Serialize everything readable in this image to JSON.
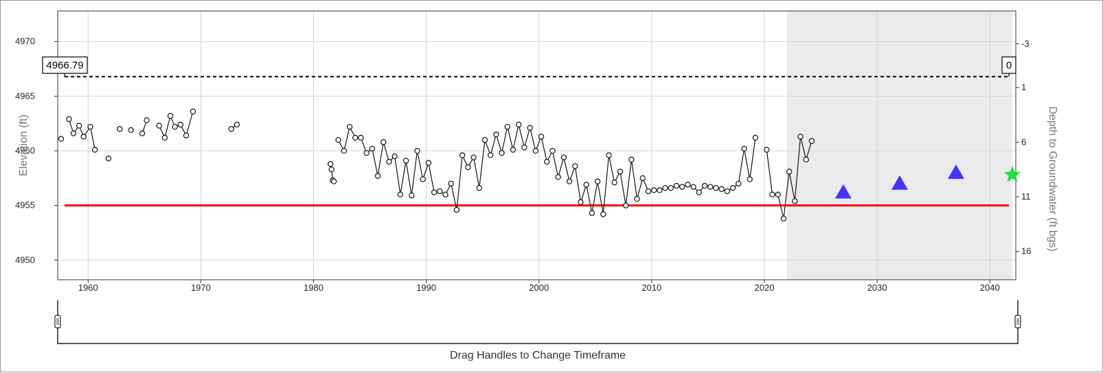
{
  "chart_data": {
    "type": "line",
    "xlim": [
      1957.3,
      2042.3
    ],
    "x_ticks": [
      "1960",
      "1970",
      "1980",
      "1990",
      "2000",
      "2010",
      "2020",
      "2030",
      "2040"
    ],
    "ylabel": "Elevation (ft)",
    "ylim": [
      4948.2,
      4972.8
    ],
    "y_ticks": [
      "4950",
      "4955",
      "4960",
      "4965",
      "4970"
    ],
    "y2label": "Depth to Groundwater (ft bgs)",
    "y2_ticks": [
      {
        "label": "-3",
        "elev": 4969.79
      },
      {
        "label": "1",
        "elev": 4965.79
      },
      {
        "label": "6",
        "elev": 4960.79
      },
      {
        "label": "11",
        "elev": 4955.79
      },
      {
        "label": "16",
        "elev": 4950.79
      }
    ],
    "grid": true,
    "forecast_region": [
      2022.0,
      2042.0
    ],
    "forecast_color": "#ebebed",
    "ground_surface": {
      "value": 4966.79,
      "left_label": "4966.79",
      "right_label": "0",
      "color": "#000000"
    },
    "threshold": {
      "value": 4955.0,
      "color": "#ff0000"
    },
    "series": [
      {
        "points": [
          [
            1957.6,
            4961.1
          ]
        ]
      },
      {
        "points": [
          [
            1958.3,
            4962.9
          ],
          [
            1958.7,
            4961.6
          ],
          [
            1959.2,
            4962.3
          ],
          [
            1959.6,
            4961.3
          ],
          [
            1960.2,
            4962.2
          ],
          [
            1960.6,
            4960.1
          ]
        ]
      },
      {
        "points": [
          [
            1961.8,
            4959.3
          ]
        ]
      },
      {
        "points": [
          [
            1962.8,
            4962.0
          ]
        ]
      },
      {
        "points": [
          [
            1963.8,
            4961.9
          ]
        ]
      },
      {
        "points": [
          [
            1964.8,
            4961.6
          ],
          [
            1965.2,
            4962.8
          ]
        ]
      },
      {
        "points": [
          [
            1966.3,
            4962.3
          ],
          [
            1966.8,
            4961.2
          ],
          [
            1967.3,
            4963.2
          ],
          [
            1967.7,
            4962.2
          ],
          [
            1968.2,
            4962.4
          ],
          [
            1968.7,
            4961.4
          ],
          [
            1969.3,
            4963.6
          ]
        ]
      },
      {
        "points": [
          [
            1972.7,
            4962.0
          ],
          [
            1973.2,
            4962.4
          ]
        ]
      },
      {
        "points": [
          [
            1981.5,
            4958.8
          ],
          [
            1981.6,
            4958.3
          ],
          [
            1981.7,
            4957.3
          ],
          [
            1981.8,
            4957.2
          ]
        ]
      },
      {
        "points": [
          [
            1982.2,
            4961.0
          ],
          [
            1982.7,
            4960.0
          ],
          [
            1983.2,
            4962.2
          ],
          [
            1983.7,
            4961.2
          ],
          [
            1984.2,
            4961.2
          ],
          [
            1984.7,
            4959.8
          ],
          [
            1985.2,
            4960.2
          ],
          [
            1985.7,
            4957.7
          ],
          [
            1986.2,
            4960.8
          ],
          [
            1986.7,
            4959.0
          ],
          [
            1987.2,
            4959.5
          ],
          [
            1987.7,
            4956.0
          ],
          [
            1988.2,
            4959.1
          ],
          [
            1988.7,
            4955.9
          ],
          [
            1989.2,
            4960.0
          ],
          [
            1989.7,
            4957.4
          ],
          [
            1990.2,
            4958.9
          ],
          [
            1990.7,
            4956.2
          ],
          [
            1991.2,
            4956.3
          ],
          [
            1991.7,
            4956.0
          ],
          [
            1992.2,
            4957.0
          ],
          [
            1992.7,
            4954.6
          ],
          [
            1993.2,
            4959.6
          ],
          [
            1993.7,
            4958.5
          ],
          [
            1994.2,
            4959.4
          ],
          [
            1994.7,
            4956.6
          ],
          [
            1995.2,
            4961.0
          ],
          [
            1995.7,
            4959.6
          ],
          [
            1996.2,
            4961.5
          ],
          [
            1996.7,
            4959.8
          ],
          [
            1997.2,
            4962.2
          ],
          [
            1997.7,
            4960.1
          ],
          [
            1998.2,
            4962.4
          ],
          [
            1998.7,
            4960.3
          ],
          [
            1999.2,
            4962.1
          ],
          [
            1999.7,
            4960.0
          ],
          [
            2000.2,
            4961.3
          ],
          [
            2000.7,
            4959.0
          ],
          [
            2001.2,
            4960.0
          ],
          [
            2001.7,
            4957.6
          ],
          [
            2002.2,
            4959.4
          ],
          [
            2002.7,
            4957.2
          ],
          [
            2003.2,
            4958.6
          ],
          [
            2003.7,
            4955.3
          ],
          [
            2004.2,
            4956.9
          ],
          [
            2004.7,
            4954.3
          ],
          [
            2005.2,
            4957.2
          ],
          [
            2005.7,
            4954.2
          ],
          [
            2006.2,
            4959.6
          ],
          [
            2006.7,
            4957.1
          ],
          [
            2007.2,
            4958.1
          ],
          [
            2007.7,
            4955.0
          ],
          [
            2008.2,
            4959.2
          ],
          [
            2008.7,
            4955.6
          ],
          [
            2009.2,
            4957.5
          ],
          [
            2009.7,
            4956.3
          ],
          [
            2010.2,
            4956.4
          ],
          [
            2010.7,
            4956.4
          ],
          [
            2011.2,
            4956.6
          ],
          [
            2011.7,
            4956.6
          ],
          [
            2012.2,
            4956.8
          ],
          [
            2012.7,
            4956.7
          ],
          [
            2013.2,
            4956.9
          ],
          [
            2013.7,
            4956.7
          ],
          [
            2014.2,
            4956.2
          ],
          [
            2014.7,
            4956.8
          ],
          [
            2015.2,
            4956.7
          ],
          [
            2015.7,
            4956.6
          ],
          [
            2016.2,
            4956.5
          ],
          [
            2016.7,
            4956.3
          ],
          [
            2017.2,
            4956.6
          ],
          [
            2017.7,
            4957.0
          ],
          [
            2018.2,
            4960.2
          ],
          [
            2018.7,
            4957.4
          ],
          [
            2019.2,
            4961.2
          ]
        ]
      },
      {
        "points": [
          [
            2020.2,
            4960.1
          ],
          [
            2020.7,
            4956.0
          ],
          [
            2021.2,
            4956.0
          ],
          [
            2021.7,
            4953.8
          ],
          [
            2022.2,
            4958.1
          ],
          [
            2022.7,
            4955.4
          ],
          [
            2023.2,
            4961.3
          ],
          [
            2023.7,
            4959.2
          ],
          [
            2024.2,
            4960.9
          ]
        ]
      }
    ],
    "projections": [
      {
        "x": 2027.0,
        "y": 4956.2,
        "shape": "triangle",
        "color": "#4433ff"
      },
      {
        "x": 2032.0,
        "y": 4957.0,
        "shape": "triangle",
        "color": "#4433ff"
      },
      {
        "x": 2037.0,
        "y": 4958.0,
        "shape": "triangle",
        "color": "#4433ff"
      },
      {
        "x": 2042.0,
        "y": 4957.8,
        "shape": "star",
        "color": "#22dd44"
      }
    ],
    "timeframe_slider": {
      "label": "Drag Handles to Change Timeframe",
      "handles": [
        "left-handle",
        "right-handle"
      ]
    }
  }
}
